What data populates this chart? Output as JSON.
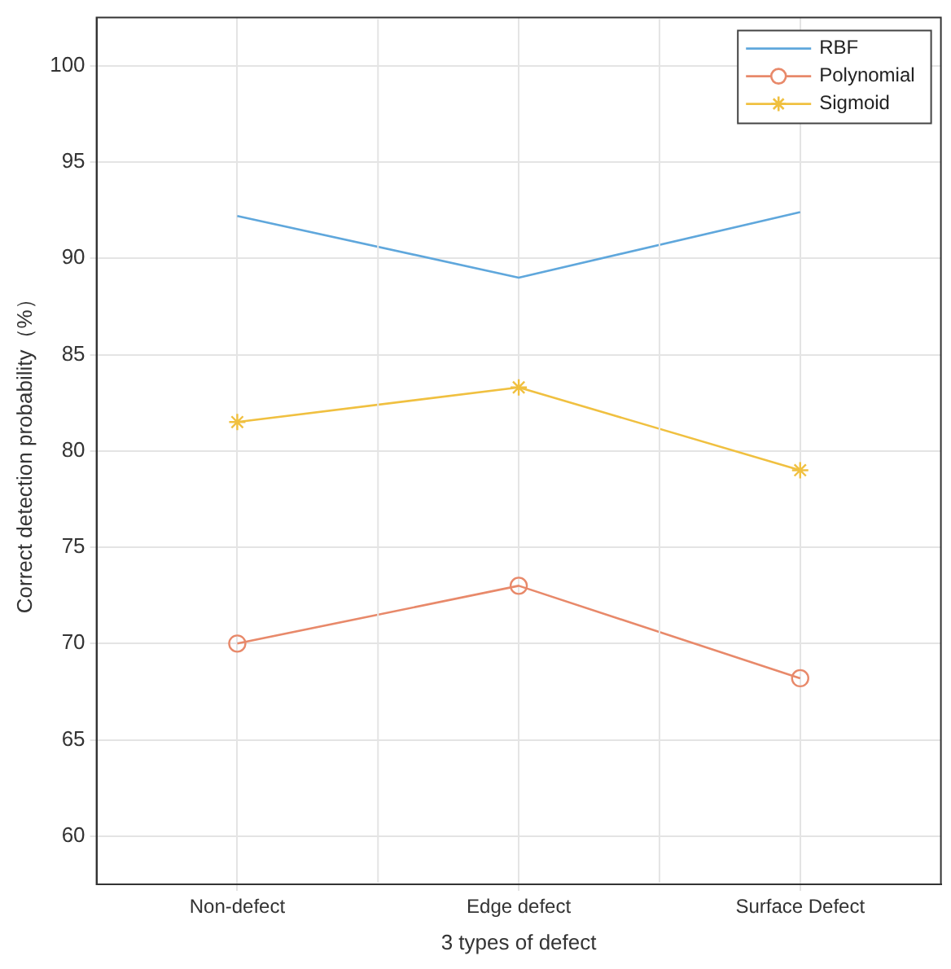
{
  "chart_data": {
    "type": "line",
    "xlabel": "3 types of defect",
    "ylabel": "Correct detection probability（%）",
    "categories": [
      "Non-defect",
      "Edge defect",
      "Surface Defect"
    ],
    "ylim": [
      57.5,
      102.5
    ],
    "yticks": [
      60,
      65,
      70,
      75,
      80,
      85,
      90,
      95,
      100
    ],
    "grid": true,
    "legend": "top right",
    "line_style": "solid",
    "series": [
      {
        "name": "RBF",
        "color": "#5fa7dc",
        "values": [
          92.2,
          89.0,
          92.4
        ],
        "marker": "none"
      },
      {
        "name": "Polynomial",
        "color": "#e8896a",
        "values": [
          70.0,
          73.0,
          68.2
        ],
        "marker": "circle"
      },
      {
        "name": "Sigmoid",
        "color": "#f0c040",
        "values": [
          81.5,
          83.3,
          79.0
        ],
        "marker": "cross"
      }
    ]
  }
}
